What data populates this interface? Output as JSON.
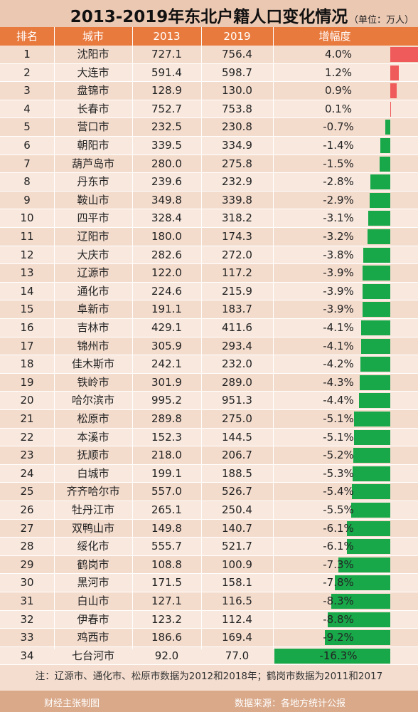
{
  "title": "2013-2019年东北户籍人口变化情况",
  "unit": "（单位：万人）",
  "headers": [
    "排名",
    "城市",
    "2013",
    "2019",
    "增幅度"
  ],
  "note": "注：辽源市、通化市、松原市数据为2012和2018年；鹤岗市数据为2011和2017",
  "credit_left": "财经主张制图",
  "credit_right": "数据来源：各地方统计公报",
  "colors": {
    "positive": "#ef5a5a",
    "negative": "#18a84a",
    "header": "#e87a3e"
  },
  "chart_data": {
    "type": "table",
    "columns": [
      "排名",
      "城市",
      "2013",
      "2019",
      "增幅度"
    ],
    "rows": [
      {
        "rank": "1",
        "city": "沈阳市",
        "y2013": "727.1",
        "y2019": "756.4",
        "change": "4.0%",
        "value": 4.0
      },
      {
        "rank": "2",
        "city": "大连市",
        "y2013": "591.4",
        "y2019": "598.7",
        "change": "1.2%",
        "value": 1.2
      },
      {
        "rank": "3",
        "city": "盘锦市",
        "y2013": "128.9",
        "y2019": "130.0",
        "change": "0.9%",
        "value": 0.9
      },
      {
        "rank": "4",
        "city": "长春市",
        "y2013": "752.7",
        "y2019": "753.8",
        "change": "0.1%",
        "value": 0.1
      },
      {
        "rank": "5",
        "city": "营口市",
        "y2013": "232.5",
        "y2019": "230.8",
        "change": "-0.7%",
        "value": -0.7
      },
      {
        "rank": "6",
        "city": "朝阳市",
        "y2013": "339.5",
        "y2019": "334.9",
        "change": "-1.4%",
        "value": -1.4
      },
      {
        "rank": "7",
        "city": "葫芦岛市",
        "y2013": "280.0",
        "y2019": "275.8",
        "change": "-1.5%",
        "value": -1.5
      },
      {
        "rank": "8",
        "city": "丹东市",
        "y2013": "239.6",
        "y2019": "232.9",
        "change": "-2.8%",
        "value": -2.8
      },
      {
        "rank": "9",
        "city": "鞍山市",
        "y2013": "349.8",
        "y2019": "339.8",
        "change": "-2.9%",
        "value": -2.9
      },
      {
        "rank": "10",
        "city": "四平市",
        "y2013": "328.4",
        "y2019": "318.2",
        "change": "-3.1%",
        "value": -3.1
      },
      {
        "rank": "11",
        "city": "辽阳市",
        "y2013": "180.0",
        "y2019": "174.3",
        "change": "-3.2%",
        "value": -3.2
      },
      {
        "rank": "12",
        "city": "大庆市",
        "y2013": "282.6",
        "y2019": "272.0",
        "change": "-3.8%",
        "value": -3.8
      },
      {
        "rank": "13",
        "city": "辽源市",
        "y2013": "122.0",
        "y2019": "117.2",
        "change": "-3.9%",
        "value": -3.9
      },
      {
        "rank": "14",
        "city": "通化市",
        "y2013": "224.6",
        "y2019": "215.9",
        "change": "-3.9%",
        "value": -3.9
      },
      {
        "rank": "15",
        "city": "阜新市",
        "y2013": "191.1",
        "y2019": "183.7",
        "change": "-3.9%",
        "value": -3.9
      },
      {
        "rank": "16",
        "city": "吉林市",
        "y2013": "429.1",
        "y2019": "411.6",
        "change": "-4.1%",
        "value": -4.1
      },
      {
        "rank": "17",
        "city": "锦州市",
        "y2013": "305.9",
        "y2019": "293.4",
        "change": "-4.1%",
        "value": -4.1
      },
      {
        "rank": "18",
        "city": "佳木斯市",
        "y2013": "242.1",
        "y2019": "232.0",
        "change": "-4.2%",
        "value": -4.2
      },
      {
        "rank": "19",
        "city": "铁岭市",
        "y2013": "301.9",
        "y2019": "289.0",
        "change": "-4.3%",
        "value": -4.3
      },
      {
        "rank": "20",
        "city": "哈尔滨市",
        "y2013": "995.2",
        "y2019": "951.3",
        "change": "-4.4%",
        "value": -4.4
      },
      {
        "rank": "21",
        "city": "松原市",
        "y2013": "289.8",
        "y2019": "275.0",
        "change": "-5.1%",
        "value": -5.1
      },
      {
        "rank": "22",
        "city": "本溪市",
        "y2013": "152.3",
        "y2019": "144.5",
        "change": "-5.1%",
        "value": -5.1
      },
      {
        "rank": "23",
        "city": "抚顺市",
        "y2013": "218.0",
        "y2019": "206.7",
        "change": "-5.2%",
        "value": -5.2
      },
      {
        "rank": "24",
        "city": "白城市",
        "y2013": "199.1",
        "y2019": "188.5",
        "change": "-5.3%",
        "value": -5.3
      },
      {
        "rank": "25",
        "city": "齐齐哈尔市",
        "y2013": "557.0",
        "y2019": "526.7",
        "change": "-5.4%",
        "value": -5.4
      },
      {
        "rank": "26",
        "city": "牡丹江市",
        "y2013": "265.1",
        "y2019": "250.4",
        "change": "-5.5%",
        "value": -5.5
      },
      {
        "rank": "27",
        "city": "双鸭山市",
        "y2013": "149.8",
        "y2019": "140.7",
        "change": "-6.1%",
        "value": -6.1
      },
      {
        "rank": "28",
        "city": "绥化市",
        "y2013": "555.7",
        "y2019": "521.7",
        "change": "-6.1%",
        "value": -6.1
      },
      {
        "rank": "29",
        "city": "鹤岗市",
        "y2013": "108.8",
        "y2019": "100.9",
        "change": "-7.3%",
        "value": -7.3
      },
      {
        "rank": "30",
        "city": "黑河市",
        "y2013": "171.5",
        "y2019": "158.1",
        "change": "-7.8%",
        "value": -7.8
      },
      {
        "rank": "31",
        "city": "白山市",
        "y2013": "127.1",
        "y2019": "116.5",
        "change": "-8.3%",
        "value": -8.3
      },
      {
        "rank": "32",
        "city": "伊春市",
        "y2013": "123.2",
        "y2019": "112.4",
        "change": "-8.8%",
        "value": -8.8
      },
      {
        "rank": "33",
        "city": "鸡西市",
        "y2013": "186.6",
        "y2019": "169.4",
        "change": "-9.2%",
        "value": -9.2
      },
      {
        "rank": "34",
        "city": "七台河市",
        "y2013": "92.0",
        "y2019": "77.0",
        "change": "-16.3%",
        "value": -16.3
      }
    ]
  }
}
